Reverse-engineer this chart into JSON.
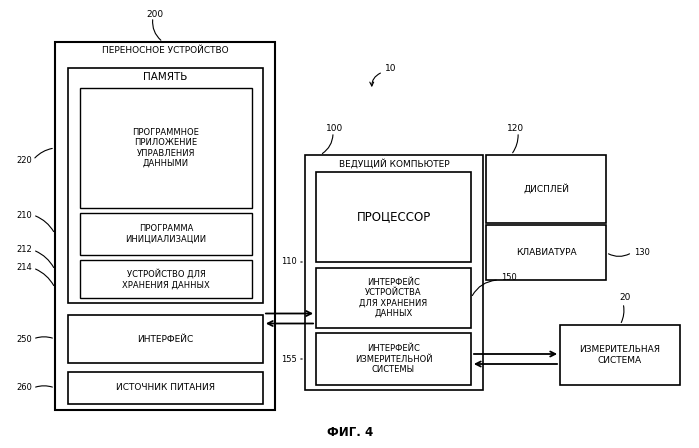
{
  "title": "ФИГ. 4",
  "bg_color": "#ffffff",
  "fig_label_10": "10",
  "fig_label_200": "200",
  "fig_label_100": "100",
  "fig_label_120": "120",
  "fig_label_20": "20",
  "fig_label_110": "110",
  "fig_label_150": "150",
  "fig_label_155": "155",
  "fig_label_130": "130",
  "fig_label_220": "220",
  "fig_label_210": "210",
  "fig_label_212": "212",
  "fig_label_214": "214",
  "fig_label_250": "250",
  "fig_label_260": "260",
  "text_portable": "ПЕРЕНОСНОЕ УСТРОЙСТВО",
  "text_memory": "ПАМЯТЬ",
  "text_data_mgmt": "ПРОГРАММНОЕ\nПРИЛОЖЕНИЕ\nУПРАВЛЕНИЯ\nДАННЫМИ",
  "text_init": "ПРОГРАММА\nИНИЦИАЛИЗАЦИИ",
  "text_storage_device": "УСТРОЙСТВО ДЛЯ\nХРАНЕНИЯ ДАННЫХ",
  "text_interface": "ИНТЕРФЕЙС",
  "text_power": "ИСТОЧНИК ПИТАНИЯ",
  "text_host": "ВЕДУЩИЙ КОМПЬЮТЕР",
  "text_display": "ДИСПЛЕЙ",
  "text_keyboard": "КЛАВИАТУРА",
  "text_processor": "ПРОЦЕССОР",
  "text_storage_iface": "ИНТЕРФЕЙС\nУСТРОЙСТВА\nДЛЯ ХРАНЕНИЯ\nДАННЫХ",
  "text_measure_iface": "ИНТЕРФЕЙС\nИЗМЕРИТЕЛЬНОЙ\nСИСТЕМЫ",
  "text_measure_sys": "ИЗМЕРИТЕЛЬНАЯ\nСИСТЕМА",
  "line_color": "#000000",
  "box_fill": "#ffffff",
  "font_size_main": 6.5,
  "font_size_label": 6.0
}
